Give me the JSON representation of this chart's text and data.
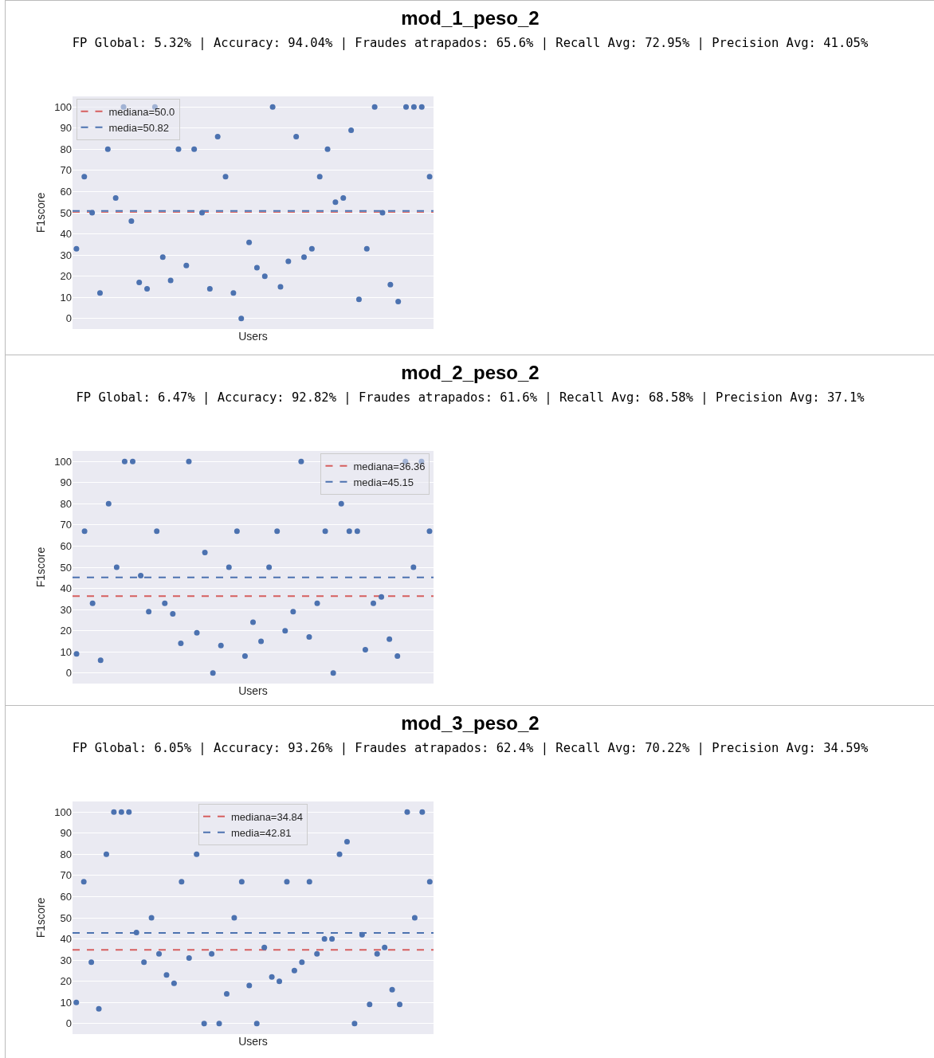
{
  "chart_data": [
    {
      "type": "scatter",
      "title": "mod_1_peso_2",
      "subtitle": "FP Global: 5.32% | Accuracy: 94.04% | Fraudes atrapados: 65.6% | Recall Avg: 72.95% | Precision Avg: 41.05%",
      "xlabel": "Users",
      "ylabel": "F1score",
      "categories": [
        null,
        null,
        null,
        null,
        null,
        null,
        null,
        null,
        null,
        null,
        null,
        null,
        null,
        null,
        null,
        null,
        null,
        null,
        null,
        null,
        null,
        null,
        null,
        null,
        null,
        null,
        null,
        null,
        null,
        null,
        null,
        null,
        null,
        null,
        null,
        null,
        null,
        null,
        null,
        null,
        null,
        null,
        null,
        null,
        null,
        null
      ],
      "values": [
        33,
        67,
        50,
        12,
        80,
        57,
        100,
        46,
        17,
        14,
        100,
        29,
        18,
        80,
        25,
        80,
        50,
        14,
        86,
        67,
        12,
        0,
        36,
        24,
        20,
        100,
        15,
        27,
        86,
        29,
        33,
        67,
        80,
        55,
        57,
        89,
        9,
        33,
        100,
        50,
        16,
        8,
        100,
        100,
        100,
        67
      ],
      "color": "#4c72b0",
      "marker": "circle",
      "ylim": [
        -5,
        105
      ],
      "yticks": [
        0,
        10,
        20,
        30,
        40,
        50,
        60,
        70,
        80,
        90,
        100
      ],
      "grid": "y",
      "legend": "top left",
      "ref_lines": [
        {
          "axis": "y",
          "value": 50.0,
          "label": "mediana=50.0",
          "color": "#d65f5f",
          "line_style": "dashed"
        },
        {
          "axis": "y",
          "value": 50.82,
          "label": "media=50.82",
          "color": "#4c72b0",
          "line_style": "dashed"
        }
      ]
    },
    {
      "type": "scatter",
      "title": "mod_2_peso_2",
      "subtitle": "FP Global: 6.47% | Accuracy: 92.82% | Fraudes atrapados: 61.6% | Recall Avg: 68.58% | Precision Avg: 37.1%",
      "xlabel": "Users",
      "ylabel": "F1score",
      "categories": [
        null,
        null,
        null,
        null,
        null,
        null,
        null,
        null,
        null,
        null,
        null,
        null,
        null,
        null,
        null,
        null,
        null,
        null,
        null,
        null,
        null,
        null,
        null,
        null,
        null,
        null,
        null,
        null,
        null,
        null,
        null,
        null,
        null,
        null,
        null,
        null,
        null,
        null,
        null,
        null,
        null,
        null,
        null,
        null,
        null
      ],
      "values": [
        9,
        67,
        33,
        6,
        80,
        50,
        100,
        100,
        46,
        29,
        67,
        33,
        28,
        14,
        100,
        19,
        57,
        0,
        13,
        50,
        67,
        8,
        24,
        15,
        50,
        67,
        20,
        29,
        100,
        17,
        33,
        67,
        0,
        80,
        67,
        67,
        11,
        33,
        36,
        16,
        8,
        100,
        50,
        100,
        67
      ],
      "color": "#4c72b0",
      "marker": "circle",
      "ylim": [
        -5,
        105
      ],
      "yticks": [
        0,
        10,
        20,
        30,
        40,
        50,
        60,
        70,
        80,
        90,
        100
      ],
      "grid": "y",
      "legend": "top right",
      "ref_lines": [
        {
          "axis": "y",
          "value": 36.36,
          "label": "mediana=36.36",
          "color": "#d65f5f",
          "line_style": "dashed"
        },
        {
          "axis": "y",
          "value": 45.15,
          "label": "media=45.15",
          "color": "#4c72b0",
          "line_style": "dashed"
        }
      ]
    },
    {
      "type": "scatter",
      "title": "mod_3_peso_2",
      "subtitle": "FP Global: 6.05% | Accuracy: 93.26% | Fraudes atrapados: 62.4% | Recall Avg: 70.22% | Precision Avg: 34.59%",
      "xlabel": "Users",
      "ylabel": "F1score",
      "categories": [
        null,
        null,
        null,
        null,
        null,
        null,
        null,
        null,
        null,
        null,
        null,
        null,
        null,
        null,
        null,
        null,
        null,
        null,
        null,
        null,
        null,
        null,
        null,
        null,
        null,
        null,
        null,
        null,
        null,
        null,
        null,
        null,
        null,
        null,
        null,
        null,
        null,
        null,
        null,
        null,
        null,
        null,
        null,
        null,
        null,
        null,
        null,
        null
      ],
      "values": [
        10,
        67,
        29,
        7,
        80,
        100,
        100,
        100,
        43,
        29,
        50,
        33,
        23,
        19,
        67,
        31,
        80,
        0,
        33,
        0,
        14,
        50,
        67,
        18,
        0,
        36,
        22,
        20,
        67,
        25,
        29,
        67,
        33,
        40,
        40,
        80,
        86,
        0,
        42,
        9,
        33,
        36,
        16,
        9,
        100,
        50,
        100,
        67
      ],
      "color": "#4c72b0",
      "marker": "circle",
      "ylim": [
        -5,
        105
      ],
      "yticks": [
        0,
        10,
        20,
        30,
        40,
        50,
        60,
        70,
        80,
        90,
        100
      ],
      "grid": "y",
      "legend": "top",
      "ref_lines": [
        {
          "axis": "y",
          "value": 34.84,
          "label": "mediana=34.84",
          "color": "#d65f5f",
          "line_style": "dashed"
        },
        {
          "axis": "y",
          "value": 42.81,
          "label": "media=42.81",
          "color": "#4c72b0",
          "line_style": "dashed"
        }
      ]
    }
  ]
}
